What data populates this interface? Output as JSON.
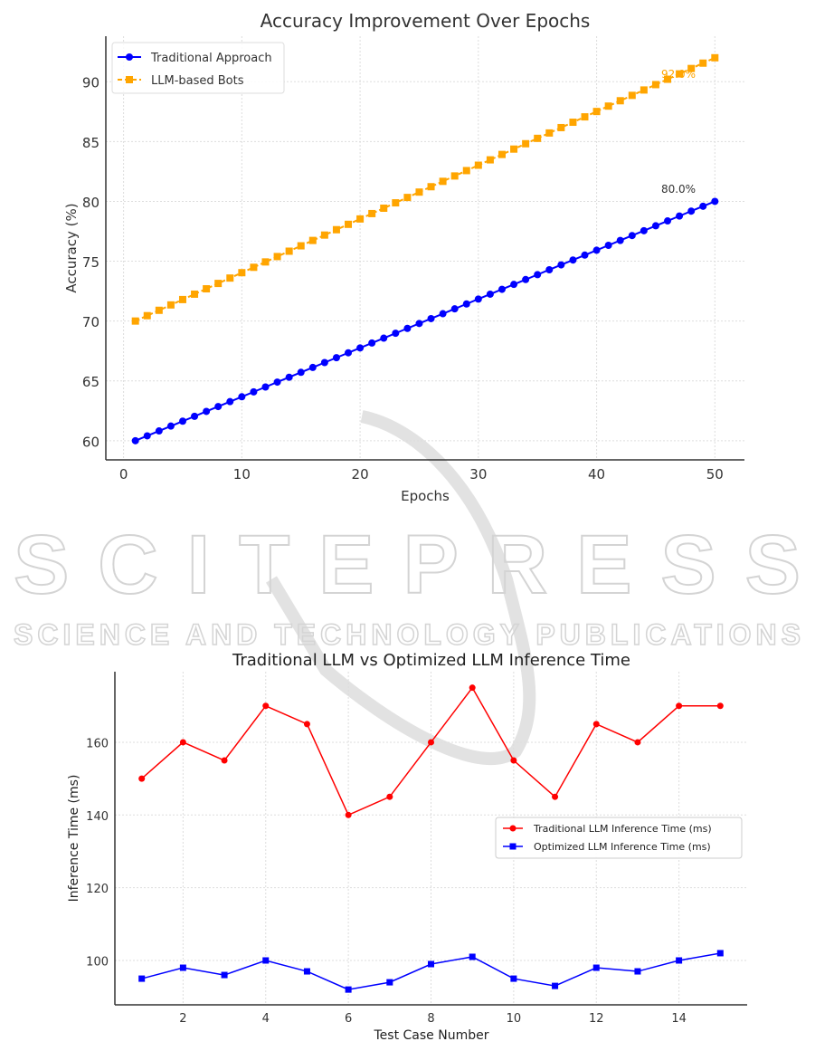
{
  "watermark": {
    "title": "SCITEPRESS",
    "subtitle": "SCIENCE AND TECHNOLOGY PUBLICATIONS"
  },
  "chart_data": [
    {
      "type": "line",
      "title": "Accuracy Improvement Over Epochs",
      "xlabel": "Epochs",
      "ylabel": "Accuracy (%)",
      "xlim": [
        -1.5,
        52.5
      ],
      "ylim": [
        58.4,
        93.8
      ],
      "xticks": [
        0,
        10,
        20,
        30,
        40,
        50
      ],
      "yticks": [
        60,
        65,
        70,
        75,
        80,
        85,
        90
      ],
      "grid": true,
      "legend_position": "top-left",
      "x_range": {
        "start": 1,
        "end": 50,
        "step": 1
      },
      "series": [
        {
          "name": "Traditional Approach",
          "color": "#0000ff",
          "marker": "circle",
          "line": "solid",
          "start": 60,
          "end": 80
        },
        {
          "name": "LLM-based Bots",
          "color": "#ffa500",
          "marker": "square",
          "line": "dashed",
          "start": 70,
          "end": 92
        }
      ],
      "annotations": [
        {
          "text": "80.0%",
          "x": 50,
          "y": 80,
          "color": "#333333"
        },
        {
          "text": "92.0%",
          "x": 50,
          "y": 92,
          "color": "#ffa500"
        }
      ]
    },
    {
      "type": "line",
      "title": "Traditional LLM vs Optimized LLM Inference Time",
      "xlabel": "Test Case Number",
      "ylabel": "Inference Time (ms)",
      "xlim": [
        0.35,
        15.65
      ],
      "ylim": [
        87.8,
        179.4
      ],
      "xticks": [
        2,
        4,
        6,
        8,
        10,
        12,
        14
      ],
      "yticks": [
        100,
        120,
        140,
        160
      ],
      "grid": true,
      "legend_position": "center-right",
      "x": [
        1,
        2,
        3,
        4,
        5,
        6,
        7,
        8,
        9,
        10,
        11,
        12,
        13,
        14,
        15
      ],
      "series": [
        {
          "name": "Traditional LLM Inference Time (ms)",
          "color": "#ff0000",
          "marker": "circle",
          "values": [
            150,
            160,
            155,
            170,
            165,
            140,
            145,
            160,
            175,
            155,
            145,
            165,
            160,
            170,
            170
          ]
        },
        {
          "name": "Optimized LLM Inference Time (ms)",
          "color": "#0000ff",
          "marker": "square",
          "values": [
            95,
            98,
            96,
            100,
            97,
            92,
            94,
            99,
            101,
            95,
            93,
            98,
            97,
            100,
            102
          ]
        }
      ]
    }
  ]
}
